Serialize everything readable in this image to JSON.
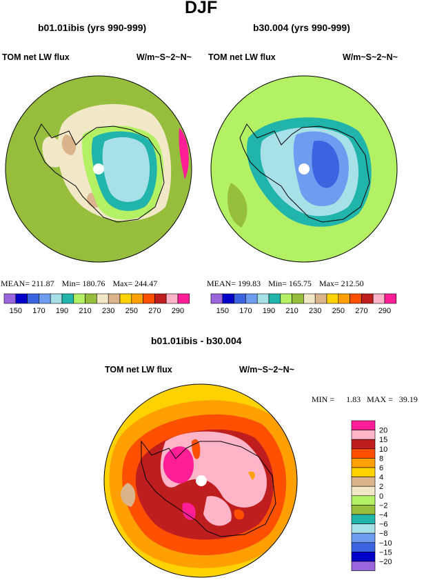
{
  "page_title": "DJF",
  "panels": [
    {
      "model_label": "b01.01ibis (yrs 990-999)",
      "variable": "TOM net LW flux",
      "units": "W/m~S~2~N~",
      "stats": {
        "mean_label": "MEAN=",
        "mean": "211.87",
        "min_label": "Min=",
        "min": "180.76",
        "max_label": "Max=",
        "max": "244.47"
      }
    },
    {
      "model_label": "b30.004 (yrs 990-999)",
      "variable": "TOM net LW flux",
      "units": "W/m~S~2~N~",
      "stats": {
        "mean_label": "MEAN=",
        "mean": "199.83",
        "min_label": "Min=",
        "min": "165.75",
        "max_label": "Max=",
        "max": "212.50"
      }
    }
  ],
  "diff_panel": {
    "title": "b01.01ibis - b30.004",
    "variable": "TOM net LW flux",
    "units": "W/m~S~2~N~",
    "stats": {
      "min_label": "MIN =",
      "min": "1.83",
      "max_label": "MAX =",
      "max": "39.19"
    }
  },
  "colorbar_top": {
    "colors": [
      "#9966dd",
      "#0000c8",
      "#3c64e0",
      "#6e9cf0",
      "#a8e0e8",
      "#20b4aa",
      "#b4f064",
      "#96be3c",
      "#f2e8c8",
      "#dcb48c",
      "#ffd200",
      "#ffa000",
      "#ff5000",
      "#be1e1e",
      "#ffb4c8",
      "#ff1e96"
    ],
    "tick_labels": [
      "150",
      "170",
      "190",
      "210",
      "230",
      "250",
      "270",
      "290"
    ]
  },
  "colorbar_diff": {
    "colors": [
      "#ff1e96",
      "#ffb4c8",
      "#be1e1e",
      "#ff5000",
      "#ffa000",
      "#ffd200",
      "#dcb48c",
      "#f2e8c8",
      "#b4f064",
      "#96be3c",
      "#20b4aa",
      "#a8e0e8",
      "#6e9cf0",
      "#3c64e0",
      "#0000c8",
      "#9966dd"
    ],
    "tick_labels": [
      "20",
      "15",
      "10",
      "8",
      "6",
      "4",
      "2",
      "0",
      "−2",
      "−4",
      "−6",
      "−8",
      "−10",
      "−15",
      "−20"
    ]
  }
}
